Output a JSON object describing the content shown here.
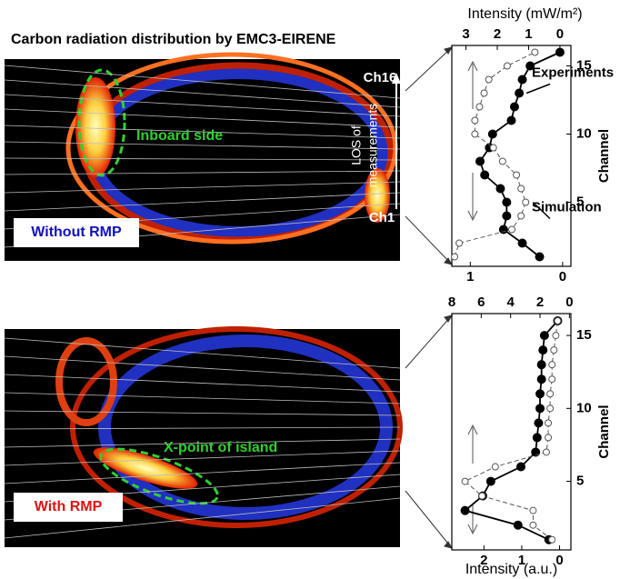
{
  "title": "Carbon radiation distribution by EMC3-EIRENE",
  "panels": [
    {
      "label": "Without RMP",
      "annotations": [
        "Inboard side",
        "Ch16",
        "Ch1"
      ],
      "los": [
        "LOS of",
        "measurements"
      ]
    },
    {
      "label": "With RMP",
      "annotations": [
        "X-point of island"
      ]
    }
  ],
  "chart_data": [
    {
      "type": "line",
      "x2label": "Intensity (mW/m²)",
      "ylabel": "Channel",
      "y": [
        1,
        2,
        3,
        4,
        5,
        6,
        7,
        8,
        9,
        10,
        11,
        12,
        13,
        14,
        15,
        16
      ],
      "x2lim": [
        3.45,
        -0.35
      ],
      "x2ticks": [
        3,
        2,
        1,
        0
      ],
      "xlim": [
        1.2,
        -0.09
      ],
      "xticks": [
        1,
        0
      ],
      "ylim": [
        0.3,
        16.5
      ],
      "yticks": [
        5,
        10,
        15
      ],
      "series": [
        {
          "name": "Experiments",
          "axis": "x2",
          "color": "#000000",
          "marker": "filled",
          "values": [
            0.65,
            1.2,
            1.8,
            1.7,
            1.7,
            1.9,
            2.4,
            2.55,
            2.25,
            2.15,
            1.55,
            1.45,
            1.3,
            1.2,
            0.95,
            0
          ]
        },
        {
          "name": "Simulation",
          "axis": "x",
          "color": "#555555",
          "marker": "open",
          "values": [
            1.17,
            1.12,
            0.55,
            0.45,
            0.4,
            0.45,
            0.5,
            0.65,
            0.75,
            0.95,
            0.95,
            0.9,
            0.85,
            0.8,
            0.6,
            0.3
          ]
        }
      ]
    },
    {
      "type": "line",
      "xlabel": "Intensity (a.u.)",
      "ylabel": "Channel",
      "y": [
        1,
        2,
        3,
        4,
        5,
        6,
        7,
        8,
        9,
        10,
        11,
        12,
        13,
        14,
        15,
        16
      ],
      "x2lim": [
        8,
        -0.1
      ],
      "x2ticks": [
        8,
        6,
        4,
        2,
        0
      ],
      "xlim": [
        2.85,
        -0.3
      ],
      "xticks": [
        2,
        1,
        0
      ],
      "ylim": [
        0.3,
        16.5
      ],
      "yticks": [
        5,
        10,
        15
      ],
      "series": [
        {
          "axis": "x2",
          "color": "#000000",
          "marker": "filled",
          "values": [
            1.4,
            3.5,
            7.1,
            5.9,
            5.35,
            3.3,
            2.3,
            2.2,
            2.1,
            2.0,
            2.0,
            1.9,
            1.9,
            1.8,
            1.7,
            0.8
          ]
        },
        {
          "axis": "x",
          "color": "#555555",
          "marker": "open",
          "values": [
            0.2,
            0.7,
            0.7,
            2.05,
            2.5,
            1.7,
            0.35,
            0.3,
            0.3,
            0.25,
            0.25,
            0.2,
            0.2,
            0.15,
            0.1,
            0.05
          ]
        }
      ]
    }
  ]
}
